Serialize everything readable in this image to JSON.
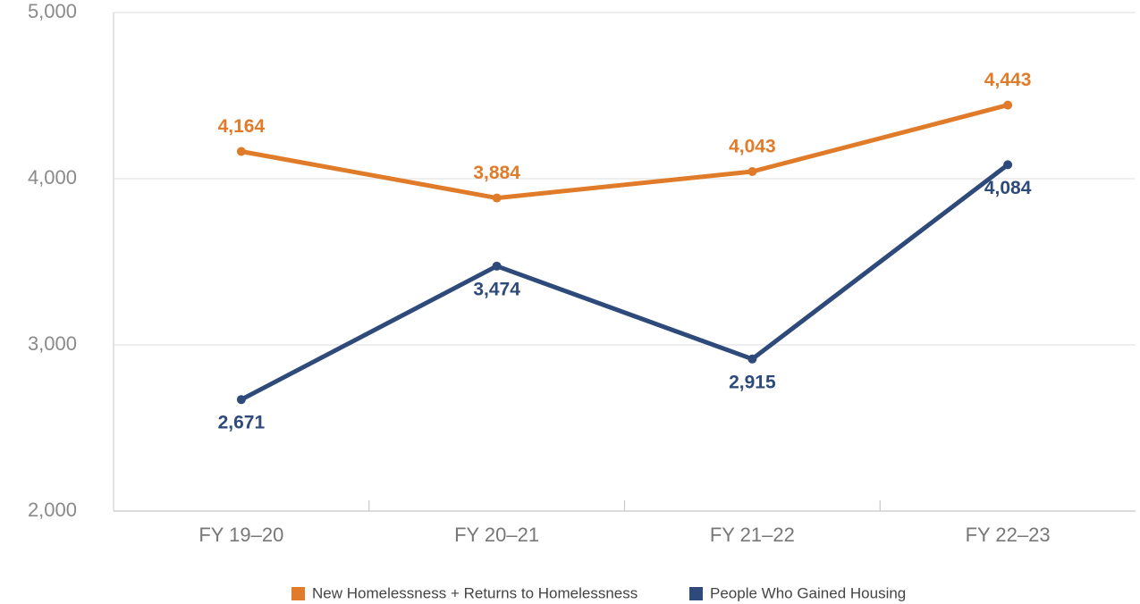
{
  "chart_data": {
    "type": "line",
    "categories": [
      "FY 19–20",
      "FY 20–21",
      "FY 21–22",
      "FY 22–23"
    ],
    "series": [
      {
        "name": "New Homelessness + Returns to Homelessness",
        "color": "#e07b2a",
        "values": [
          4164,
          3884,
          4043,
          4443
        ],
        "value_labels": [
          "4,164",
          "3,884",
          "4,043",
          "4,443"
        ]
      },
      {
        "name": "People Who Gained Housing",
        "color": "#2d4a7a",
        "values": [
          2671,
          3474,
          2915,
          4084
        ],
        "value_labels": [
          "2,671",
          "3,474",
          "2,915",
          "4,084"
        ]
      }
    ],
    "ylim": [
      2000,
      5000
    ],
    "yticks": [
      {
        "value": 2000,
        "label": "2,000"
      },
      {
        "value": 3000,
        "label": "3,000"
      },
      {
        "value": 4000,
        "label": "4,000"
      },
      {
        "value": 5000,
        "label": "5,000"
      }
    ],
    "grid": true,
    "legend": "bottom"
  }
}
